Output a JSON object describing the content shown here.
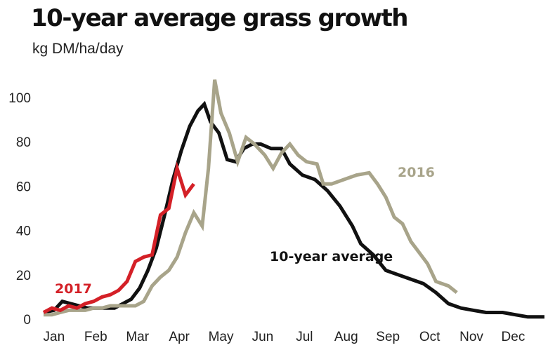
{
  "title": "10-year average grass growth",
  "subtitle": "kg DM/ha/day",
  "colors": {
    "ten_year": "#111111",
    "y2016": "#a8a48a",
    "y2017": "#d42027"
  },
  "chart_data": {
    "type": "line",
    "title": "10-year average grass growth",
    "ylabel": "kg DM/ha/day",
    "xlabel": "",
    "ylim": [
      0,
      110
    ],
    "yticks": [
      0,
      20,
      40,
      60,
      80,
      100
    ],
    "xlim": [
      0,
      12
    ],
    "months": [
      "Jan",
      "Feb",
      "Mar",
      "Apr",
      "May",
      "Jun",
      "Jul",
      "Aug",
      "Sep",
      "Oct",
      "Nov",
      "Dec"
    ],
    "x_unit": "months from start of January",
    "grid": false,
    "legend": "inline labels",
    "series": [
      {
        "name": "10-year average",
        "color_key": "ten_year",
        "points": [
          [
            0.0,
            3
          ],
          [
            0.25,
            4
          ],
          [
            0.45,
            8
          ],
          [
            0.65,
            7
          ],
          [
            0.85,
            6
          ],
          [
            1.05,
            5
          ],
          [
            1.3,
            5
          ],
          [
            1.5,
            5
          ],
          [
            1.7,
            5
          ],
          [
            1.9,
            7
          ],
          [
            2.1,
            9
          ],
          [
            2.3,
            14
          ],
          [
            2.5,
            22
          ],
          [
            2.7,
            32
          ],
          [
            2.9,
            47
          ],
          [
            3.1,
            63
          ],
          [
            3.3,
            76
          ],
          [
            3.5,
            87
          ],
          [
            3.7,
            94
          ],
          [
            3.85,
            97
          ],
          [
            4.0,
            89
          ],
          [
            4.2,
            84
          ],
          [
            4.4,
            72
          ],
          [
            4.6,
            71
          ],
          [
            4.8,
            77
          ],
          [
            5.0,
            79
          ],
          [
            5.2,
            79
          ],
          [
            5.45,
            77
          ],
          [
            5.7,
            77
          ],
          [
            5.9,
            70
          ],
          [
            6.2,
            65
          ],
          [
            6.5,
            63
          ],
          [
            6.8,
            58
          ],
          [
            7.1,
            51
          ],
          [
            7.4,
            42
          ],
          [
            7.6,
            34
          ],
          [
            7.9,
            29
          ],
          [
            8.2,
            22
          ],
          [
            8.5,
            20
          ],
          [
            8.8,
            18
          ],
          [
            9.1,
            16
          ],
          [
            9.4,
            12
          ],
          [
            9.7,
            7
          ],
          [
            10.0,
            5
          ],
          [
            10.3,
            4
          ],
          [
            10.6,
            3
          ],
          [
            11.0,
            3
          ],
          [
            11.3,
            2
          ],
          [
            11.6,
            1
          ],
          [
            12.0,
            1
          ]
        ]
      },
      {
        "name": "2016",
        "color_key": "y2016",
        "points": [
          [
            0.0,
            2
          ],
          [
            0.2,
            2
          ],
          [
            0.4,
            3
          ],
          [
            0.6,
            4
          ],
          [
            0.8,
            4
          ],
          [
            1.0,
            4
          ],
          [
            1.2,
            5
          ],
          [
            1.4,
            5
          ],
          [
            1.6,
            6
          ],
          [
            1.8,
            6
          ],
          [
            2.0,
            6
          ],
          [
            2.2,
            6
          ],
          [
            2.4,
            8
          ],
          [
            2.6,
            15
          ],
          [
            2.8,
            19
          ],
          [
            3.0,
            22
          ],
          [
            3.2,
            28
          ],
          [
            3.4,
            39
          ],
          [
            3.6,
            48
          ],
          [
            3.8,
            42
          ],
          [
            3.95,
            68
          ],
          [
            4.1,
            108
          ],
          [
            4.25,
            93
          ],
          [
            4.45,
            84
          ],
          [
            4.65,
            71
          ],
          [
            4.85,
            82
          ],
          [
            5.05,
            79
          ],
          [
            5.3,
            74
          ],
          [
            5.5,
            68
          ],
          [
            5.7,
            75
          ],
          [
            5.9,
            79
          ],
          [
            6.1,
            74
          ],
          [
            6.3,
            71
          ],
          [
            6.55,
            70
          ],
          [
            6.7,
            61
          ],
          [
            6.9,
            61
          ],
          [
            7.2,
            63
          ],
          [
            7.5,
            65
          ],
          [
            7.8,
            66
          ],
          [
            8.0,
            61
          ],
          [
            8.2,
            55
          ],
          [
            8.4,
            46
          ],
          [
            8.6,
            43
          ],
          [
            8.8,
            35
          ],
          [
            9.0,
            30
          ],
          [
            9.2,
            25
          ],
          [
            9.4,
            17
          ],
          [
            9.7,
            15
          ],
          [
            9.9,
            12
          ]
        ]
      },
      {
        "name": "2017",
        "color_key": "y2017",
        "points": [
          [
            0.0,
            3
          ],
          [
            0.2,
            5
          ],
          [
            0.4,
            4
          ],
          [
            0.6,
            6
          ],
          [
            0.8,
            5
          ],
          [
            1.0,
            7
          ],
          [
            1.2,
            8
          ],
          [
            1.4,
            10
          ],
          [
            1.6,
            11
          ],
          [
            1.8,
            13
          ],
          [
            2.0,
            17
          ],
          [
            2.2,
            26
          ],
          [
            2.4,
            28
          ],
          [
            2.6,
            29
          ],
          [
            2.8,
            47
          ],
          [
            3.0,
            50
          ],
          [
            3.2,
            68
          ],
          [
            3.4,
            56
          ],
          [
            3.6,
            61
          ]
        ]
      }
    ],
    "annotations": [
      {
        "text": "10-year average",
        "series": "10-year average"
      },
      {
        "text": "2016",
        "series": "2016"
      },
      {
        "text": "2017",
        "series": "2017"
      }
    ]
  }
}
